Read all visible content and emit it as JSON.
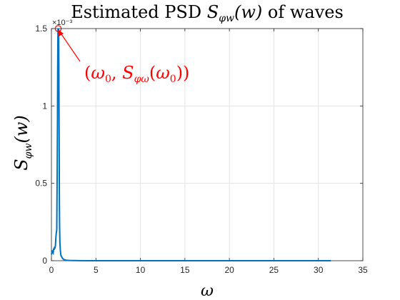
{
  "chart_data": {
    "type": "line",
    "title_prefix": "Estimated PSD ",
    "title_math": "S",
    "title_sub": "φw",
    "title_math_tail": "(w)",
    "title_suffix": " of waves",
    "xlabel": "ω",
    "ylabel_main": "S",
    "ylabel_sub": "φw",
    "ylabel_tail": "(w)",
    "xlim": [
      0,
      35
    ],
    "ylim": [
      0,
      0.0015
    ],
    "x_ticks": [
      0,
      5,
      10,
      15,
      20,
      25,
      30,
      35
    ],
    "y_ticks": [
      0,
      0.0005,
      0.001,
      0.0015
    ],
    "x_tick_labels": [
      "0",
      "5",
      "10",
      "15",
      "20",
      "25",
      "30",
      "35"
    ],
    "y_tick_labels": [
      "0",
      "0.5",
      "1",
      "1.5"
    ],
    "y_exponent_label": "×10⁻³",
    "grid": true,
    "series": [
      {
        "color": "#0072BD",
        "x": [
          0,
          0.1,
          0.2,
          0.25,
          0.3,
          0.35,
          0.4,
          0.45,
          0.5,
          0.55,
          0.6,
          0.62,
          0.65,
          0.68,
          0.7,
          0.72,
          0.74,
          0.76,
          0.78,
          0.8,
          0.82,
          0.84,
          0.86,
          0.88,
          0.9,
          0.92,
          0.95,
          1.0,
          1.05,
          1.1,
          1.2,
          1.3,
          1.4,
          1.5,
          1.7,
          2.0,
          2.5,
          3.0,
          4.0,
          6.0,
          10.0,
          15.0,
          20.0,
          25.0,
          31.4
        ],
        "y": [
          4e-05,
          6e-05,
          5e-05,
          8e-05,
          7e-05,
          9e-05,
          8e-05,
          0.0001,
          0.00015,
          0.00018,
          0.0002,
          0.00035,
          0.0006,
          0.0009,
          0.0012,
          0.0014,
          0.0015,
          0.00148,
          0.00145,
          0.0015,
          0.00142,
          0.0012,
          0.0009,
          0.0006,
          0.00035,
          0.00022,
          0.00012,
          7e-05,
          4e-05,
          3e-05,
          2e-05,
          1.2e-05,
          8e-06,
          5e-06,
          3e-06,
          2e-06,
          1e-06,
          6e-07,
          3e-07,
          2e-07,
          1e-07,
          1e-07,
          1e-07,
          1e-07,
          1e-07
        ]
      }
    ],
    "marker": {
      "x": 0.76,
      "y": 0.0015,
      "color": "#ff0000"
    },
    "annotation": {
      "open": "(",
      "omega0": "ω",
      "sub0": "0",
      "comma": ", ",
      "S": "S",
      "sub_phi": "φω",
      "arg_open": "(",
      "arg_omega": "ω",
      "arg_sub0": "0",
      "close": "))",
      "color": "#ff0000"
    }
  }
}
